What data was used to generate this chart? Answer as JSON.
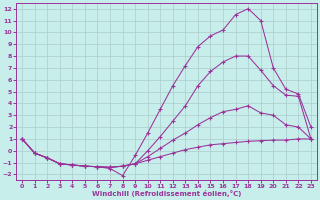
{
  "xlabel": "Windchill (Refroidissement éolien,°C)",
  "background_color": "#c8eeec",
  "line_color": "#993399",
  "grid_color": "#aacccc",
  "xlim": [
    -0.5,
    23.5
  ],
  "ylim": [
    -2.5,
    12.5
  ],
  "xticks": [
    0,
    1,
    2,
    3,
    4,
    5,
    6,
    7,
    8,
    9,
    10,
    11,
    12,
    13,
    14,
    15,
    16,
    17,
    18,
    19,
    20,
    21,
    22,
    23
  ],
  "yticks": [
    -2,
    -1,
    0,
    1,
    2,
    3,
    4,
    5,
    6,
    7,
    8,
    9,
    10,
    11,
    12
  ],
  "line1_x": [
    0,
    1,
    2,
    3,
    4,
    5,
    6,
    7,
    8,
    9,
    10,
    11,
    12,
    13,
    14,
    15,
    16,
    17,
    18,
    19,
    20,
    21,
    22,
    23
  ],
  "line1_y": [
    1.0,
    -0.2,
    -0.6,
    -1.1,
    -1.2,
    -1.3,
    -1.35,
    -1.4,
    -1.3,
    -1.1,
    -0.8,
    -0.5,
    -0.2,
    0.1,
    0.3,
    0.5,
    0.6,
    0.7,
    0.8,
    0.85,
    0.9,
    0.9,
    1.0,
    1.0
  ],
  "line2_x": [
    0,
    1,
    2,
    3,
    4,
    5,
    6,
    7,
    8,
    9,
    10,
    11,
    12,
    13,
    14,
    15,
    16,
    17,
    18,
    19,
    20,
    21,
    22,
    23
  ],
  "line2_y": [
    1.0,
    -0.2,
    -0.6,
    -1.1,
    -1.2,
    -1.3,
    -1.35,
    -1.4,
    -1.3,
    -1.1,
    -0.5,
    0.2,
    0.9,
    1.5,
    2.2,
    2.8,
    3.3,
    3.5,
    3.8,
    3.2,
    3.0,
    2.2,
    2.0,
    1.0
  ],
  "line3_x": [
    0,
    1,
    2,
    3,
    4,
    5,
    6,
    7,
    8,
    9,
    10,
    11,
    12,
    13,
    14,
    15,
    16,
    17,
    18,
    19,
    20,
    21,
    22,
    23
  ],
  "line3_y": [
    1.0,
    -0.2,
    -0.6,
    -1.1,
    -1.2,
    -1.3,
    -1.35,
    -1.4,
    -1.3,
    -1.1,
    0.0,
    1.2,
    2.5,
    3.8,
    5.5,
    6.7,
    7.5,
    8.0,
    8.0,
    6.8,
    5.5,
    4.7,
    4.6,
    1.0
  ],
  "line4_x": [
    0,
    1,
    2,
    3,
    4,
    5,
    6,
    7,
    8,
    9,
    10,
    11,
    12,
    13,
    14,
    15,
    16,
    17,
    18,
    19,
    20,
    21,
    22,
    23
  ],
  "line4_y": [
    1.0,
    -0.2,
    -0.6,
    -1.1,
    -1.2,
    -1.3,
    -1.35,
    -1.5,
    -2.1,
    -0.4,
    1.5,
    3.5,
    5.5,
    7.2,
    8.8,
    9.7,
    10.2,
    11.5,
    12.0,
    11.0,
    7.0,
    5.2,
    4.8,
    2.0
  ]
}
